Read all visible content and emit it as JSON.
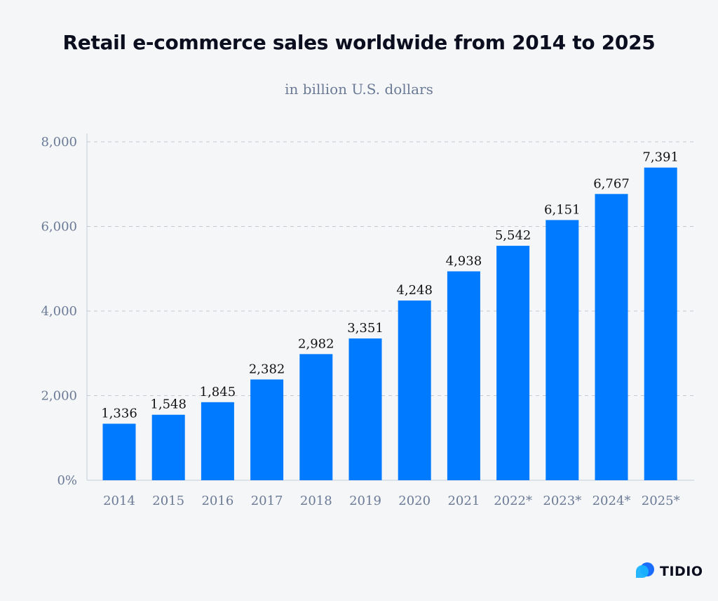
{
  "chart_data": {
    "type": "bar",
    "title": "Retail e-commerce sales worldwide from 2014 to 2025",
    "subtitle": "in billion U.S. dollars",
    "xlabel": "",
    "ylabel": "",
    "categories": [
      "2014",
      "2015",
      "2016",
      "2017",
      "2018",
      "2019",
      "2020",
      "2021",
      "2022*",
      "2023*",
      "2024*",
      "2025*"
    ],
    "values": [
      1336,
      1548,
      1845,
      2382,
      2982,
      3351,
      4248,
      4938,
      5542,
      6151,
      6767,
      7391
    ],
    "data_labels": [
      "1,336",
      "1,548",
      "1,845",
      "2,382",
      "2,982",
      "3,351",
      "4,248",
      "4,938",
      "5,542",
      "6,151",
      "6,767",
      "7,391"
    ],
    "ylim": [
      0,
      8000
    ],
    "yticks": [
      0,
      2000,
      4000,
      6000,
      8000
    ],
    "ytick_labels": [
      "0%",
      "2,000",
      "4,000",
      "6,000",
      "8,000"
    ],
    "grid": true,
    "legend": "none",
    "bar_color": "#007bff"
  },
  "branding": {
    "logo_text": "TIDIO",
    "logo_icon": "chat-bubbles-icon"
  }
}
